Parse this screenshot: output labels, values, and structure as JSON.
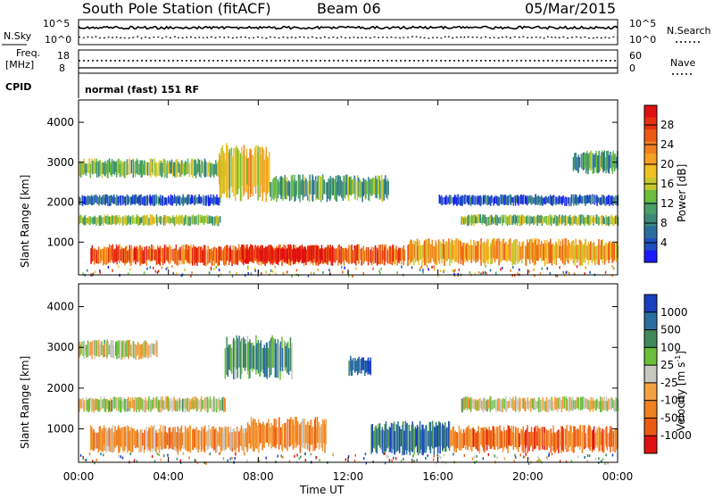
{
  "header": {
    "station": "South Pole Station (fitACF)",
    "beam": "Beam 06",
    "date": "05/Mar/2015"
  },
  "panels": {
    "nsky": {
      "left_label": "N.Sky",
      "right_label": "N.Search",
      "ticks": [
        "10^5",
        "10^0"
      ],
      "right_ticks": [
        "10^5",
        "10^0"
      ]
    },
    "freq": {
      "left_label_1": "Freq.",
      "left_label_2": "[MHz]",
      "ticks": [
        "18",
        "8"
      ],
      "right_label": "Nave",
      "right_ticks": [
        "60",
        "0"
      ]
    },
    "cpid": {
      "left_label": "CPID",
      "text": "normal (fast) 151 RF"
    }
  },
  "chart_data": [
    {
      "type": "heatmap",
      "name": "power",
      "ylabel": "Slant Range [km]",
      "yticks": [
        1000,
        2000,
        3000,
        4000
      ],
      "ylim": [
        180,
        4560
      ],
      "xlim": [
        0,
        24
      ],
      "colorbar": {
        "label": "Power [dB]",
        "ticks": [
          "28",
          "24",
          "20",
          "16",
          "12",
          "8",
          "4"
        ],
        "colors": [
          "#1a1aff",
          "#1f4fbf",
          "#2a6ea0",
          "#3a8a7a",
          "#4aa066",
          "#6bbf3a",
          "#c7c92b",
          "#f0c020",
          "#f5a020",
          "#f08020",
          "#ee5a12",
          "#e83010",
          "#e01010"
        ]
      },
      "bands": [
        {
          "y0": 400,
          "y1": 950,
          "x0": 0.5,
          "x1": 14.5,
          "level": 0.8
        },
        {
          "y0": 450,
          "y1": 950,
          "x0": 7.2,
          "x1": 11.2,
          "level": 1.0
        },
        {
          "y0": 400,
          "y1": 1100,
          "x0": 14.6,
          "x1": 24,
          "level": 0.65
        },
        {
          "y0": 1400,
          "y1": 1700,
          "x0": 0,
          "x1": 6.3,
          "level": 0.45
        },
        {
          "y0": 1400,
          "y1": 1700,
          "x0": 17,
          "x1": 24,
          "level": 0.4
        },
        {
          "y0": 1900,
          "y1": 2200,
          "x0": 0,
          "x1": 6.3,
          "level": 0.15
        },
        {
          "y0": 1900,
          "y1": 2200,
          "x0": 16,
          "x1": 24,
          "level": 0.15
        },
        {
          "y0": 2600,
          "y1": 3100,
          "x0": 0,
          "x1": 6.6,
          "level": 0.4
        },
        {
          "y0": 2700,
          "y1": 3300,
          "x0": 22,
          "x1": 24,
          "level": 0.3
        },
        {
          "y0": 2000,
          "y1": 3500,
          "x0": 6.2,
          "x1": 8.5,
          "level": 0.55
        },
        {
          "y0": 2000,
          "y1": 2700,
          "x0": 8.5,
          "x1": 13.8,
          "level": 0.35
        }
      ]
    },
    {
      "type": "heatmap",
      "name": "velocity",
      "ylabel": "Slant Range [km]",
      "yticks": [
        1000,
        2000,
        3000,
        4000
      ],
      "ylim": [
        180,
        4560
      ],
      "xlim": [
        0,
        24
      ],
      "xticks": [
        "00:00",
        "04:00",
        "08:00",
        "12:00",
        "16:00",
        "20:00",
        "00:00"
      ],
      "xlabel": "Time UT",
      "colorbar": {
        "label": "Velocity [m s",
        "label_sup": "-1",
        "label_end": "]",
        "ticks": [
          "1000",
          "500",
          "100",
          "25",
          "-25",
          "-100",
          "-500",
          "-1000"
        ],
        "colors": [
          "#1a3fbf",
          "#2a6ea0",
          "#3f8a5a",
          "#6bbf3a",
          "#c8c8c0",
          "#f5a040",
          "#f08020",
          "#ee5a12",
          "#e01010"
        ]
      },
      "bands": [
        {
          "y0": 400,
          "y1": 1100,
          "x0": 0.5,
          "x1": 7.5,
          "level": 0.35
        },
        {
          "y0": 400,
          "y1": 1300,
          "x0": 7.5,
          "x1": 11,
          "level": 0.3
        },
        {
          "y0": 350,
          "y1": 1200,
          "x0": 13,
          "x1": 16.5,
          "level": 0.8
        },
        {
          "y0": 400,
          "y1": 1100,
          "x0": 16.5,
          "x1": 24,
          "level": 0.25
        },
        {
          "y0": 1400,
          "y1": 1800,
          "x0": 0,
          "x1": 6.5,
          "level": 0.5
        },
        {
          "y0": 1400,
          "y1": 1800,
          "x0": 17,
          "x1": 24,
          "level": 0.5
        },
        {
          "y0": 2700,
          "y1": 3200,
          "x0": 0,
          "x1": 3.5,
          "level": 0.5
        },
        {
          "y0": 2200,
          "y1": 3300,
          "x0": 6.5,
          "x1": 9.5,
          "level": 0.7
        },
        {
          "y0": 2300,
          "y1": 2800,
          "x0": 12,
          "x1": 13,
          "level": 0.9
        }
      ]
    }
  ]
}
